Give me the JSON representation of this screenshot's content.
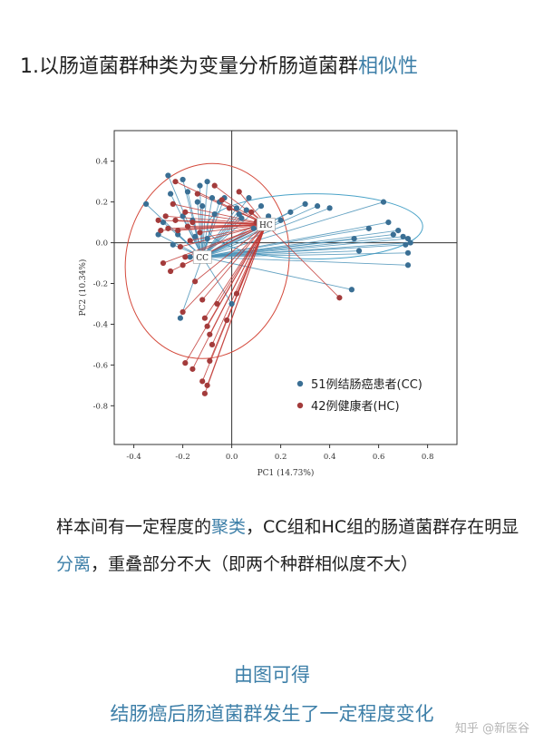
{
  "heading": {
    "prefix": "1.以肠道菌群种类为变量分析肠道菌群",
    "highlight": "相似性"
  },
  "chart_data": {
    "type": "scatter",
    "xlabel": "PC1 (14.73%)",
    "ylabel": "PC2 (10.34%)",
    "xlim": [
      -0.48,
      0.92
    ],
    "ylim": [
      -0.99,
      0.55
    ],
    "xticks": [
      -0.4,
      -0.2,
      0.0,
      0.2,
      0.4,
      0.6,
      0.8
    ],
    "xtick_labels": [
      "-0.4",
      "-0.2",
      "0.0",
      "0.2",
      "0.4",
      "0.6",
      "0.8"
    ],
    "yticks": [
      0.4,
      0.2,
      0.0,
      -0.2,
      -0.4,
      -0.6,
      -0.8
    ],
    "ytick_labels": [
      "0.4",
      "0.2",
      "0.0",
      "-0.2",
      "-0.4",
      "-0.6",
      "-0.8"
    ],
    "grid": false,
    "zero_lines": true,
    "legend_position": "bottom-right",
    "series": [
      {
        "name": "51例结肠癌患者(CC)",
        "color": "#3a6f94",
        "centroid_label": "CC",
        "centroid": [
          -0.12,
          -0.07
        ],
        "ellipse": {
          "center": [
            -0.1,
            -0.09
          ],
          "rx": 0.4,
          "ry": 0.4,
          "angle": -80
        },
        "points": [
          [
            -0.35,
            0.19
          ],
          [
            -0.3,
            0.04
          ],
          [
            -0.28,
            0.1
          ],
          [
            -0.26,
            0.33
          ],
          [
            -0.25,
            0.24
          ],
          [
            -0.24,
            -0.01
          ],
          [
            -0.22,
            0.04
          ],
          [
            -0.2,
            0.13
          ],
          [
            -0.2,
            0.31
          ],
          [
            -0.18,
            0.25
          ],
          [
            -0.17,
            -0.07
          ],
          [
            -0.16,
            0.11
          ],
          [
            -0.15,
            0.03
          ],
          [
            -0.14,
            0.2
          ],
          [
            -0.13,
            0.28
          ],
          [
            -0.12,
            0.18
          ],
          [
            -0.1,
            0.3
          ],
          [
            -0.1,
            0.02
          ],
          [
            -0.08,
            0.22
          ],
          [
            -0.07,
            0.14
          ],
          [
            -0.05,
            0.2
          ],
          [
            -0.03,
            0.22
          ],
          [
            -0.21,
            -0.37
          ],
          [
            0.0,
            -0.3
          ],
          [
            0.02,
            0.17
          ],
          [
            0.03,
            0.14
          ],
          [
            0.04,
            0.12
          ],
          [
            0.06,
            0.16
          ],
          [
            0.07,
            0.22
          ],
          [
            0.12,
            0.18
          ],
          [
            0.09,
            0.07
          ],
          [
            0.15,
            0.13
          ],
          [
            0.2,
            0.11
          ],
          [
            0.24,
            0.15
          ],
          [
            0.3,
            0.19
          ],
          [
            0.35,
            0.18
          ],
          [
            0.4,
            0.17
          ],
          [
            0.5,
            0.02
          ],
          [
            0.52,
            -0.04
          ],
          [
            0.49,
            -0.23
          ],
          [
            0.56,
            0.07
          ],
          [
            0.62,
            0.2
          ],
          [
            0.64,
            0.1
          ],
          [
            0.66,
            0.04
          ],
          [
            0.68,
            0.06
          ],
          [
            0.7,
            0.03
          ],
          [
            0.71,
            -0.01
          ],
          [
            0.72,
            0.02
          ],
          [
            0.72,
            -0.05
          ],
          [
            0.72,
            -0.11
          ],
          [
            0.73,
            0.0
          ]
        ]
      },
      {
        "name": "42例健康者(HC)",
        "color": "#a33b3b",
        "centroid_label": "HC",
        "centroid": [
          0.14,
          0.09
        ],
        "ellipse": {
          "center": [
            0.34,
            0.08
          ],
          "rx": 0.44,
          "ry": 0.16,
          "angle": 0
        },
        "points": [
          [
            -0.3,
            0.11
          ],
          [
            -0.29,
            0.06
          ],
          [
            -0.28,
            -0.1
          ],
          [
            -0.27,
            0.13
          ],
          [
            -0.26,
            0.07
          ],
          [
            -0.25,
            -0.14
          ],
          [
            -0.24,
            0.19
          ],
          [
            -0.23,
            0.11
          ],
          [
            -0.22,
            0.06
          ],
          [
            -0.21,
            -0.02
          ],
          [
            -0.2,
            -0.11
          ],
          [
            -0.19,
            0.15
          ],
          [
            -0.19,
            -0.07
          ],
          [
            -0.18,
            0.08
          ],
          [
            -0.17,
            0.01
          ],
          [
            -0.16,
            0.1
          ],
          [
            -0.15,
            -0.19
          ],
          [
            -0.14,
            0.24
          ],
          [
            -0.13,
            0.05
          ],
          [
            -0.12,
            -0.28
          ],
          [
            -0.11,
            -0.37
          ],
          [
            -0.1,
            -0.41
          ],
          [
            -0.09,
            -0.45
          ],
          [
            -0.08,
            -0.5
          ],
          [
            -0.09,
            -0.58
          ],
          [
            -0.1,
            -0.7
          ],
          [
            -0.11,
            -0.74
          ],
          [
            -0.12,
            -0.68
          ],
          [
            -0.19,
            -0.59
          ],
          [
            -0.16,
            -0.62
          ],
          [
            -0.2,
            -0.34
          ],
          [
            -0.06,
            -0.3
          ],
          [
            -0.02,
            -0.38
          ],
          [
            -0.07,
            0.28
          ],
          [
            -0.04,
            0.21
          ],
          [
            -0.01,
            0.17
          ],
          [
            0.02,
            -0.25
          ],
          [
            0.03,
            0.25
          ],
          [
            0.08,
            0.15
          ],
          [
            0.1,
            0.1
          ],
          [
            0.44,
            -0.27
          ],
          [
            -0.23,
            0.3
          ]
        ]
      }
    ]
  },
  "paragraph": {
    "p1": "样本间有一定程度的",
    "h1": "聚类",
    "p2": "，CC组和HC组的肠道菌群存在明显",
    "h2": "分离",
    "p3": "，重叠部分不大（即两个种群相似度不大）"
  },
  "summary": {
    "line1": "由图可得",
    "line2": "结肠癌后肠道菌群发生了一定程度变化"
  },
  "watermark": "知乎 @新医谷"
}
